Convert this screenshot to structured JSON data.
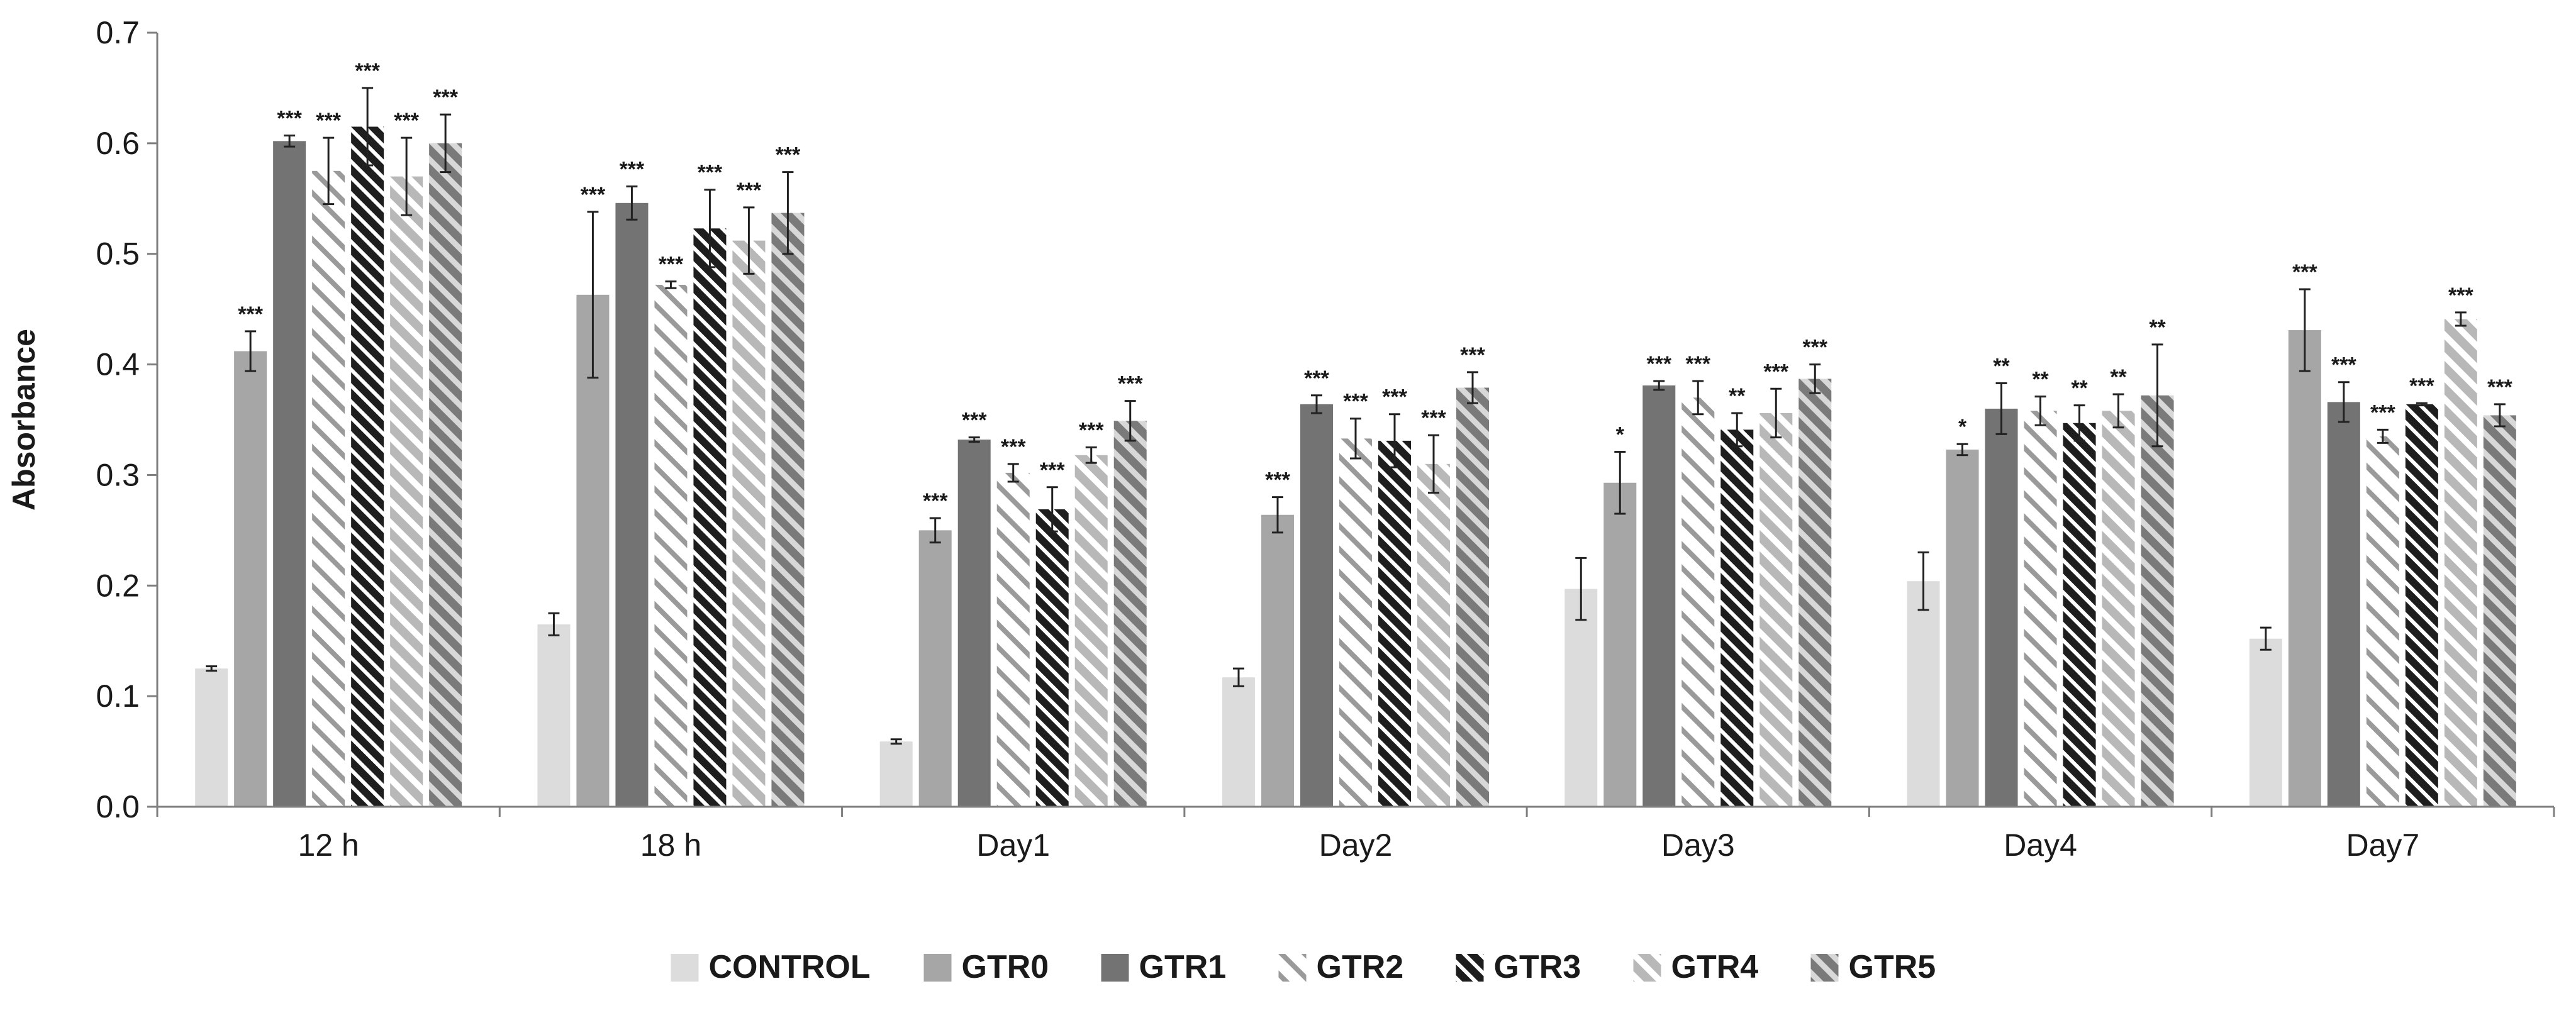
{
  "chart_data": {
    "type": "bar",
    "title": "",
    "xlabel": "",
    "ylabel": "Absorbance",
    "ylim": [
      0,
      0.7
    ],
    "yticks": [
      "0.0",
      "0.1",
      "0.2",
      "0.3",
      "0.4",
      "0.5",
      "0.6",
      "0.7"
    ],
    "grid": false,
    "legend_position": "bottom",
    "categories": [
      "12 h",
      "18 h",
      "Day1",
      "Day2",
      "Day3",
      "Day4",
      "Day7"
    ],
    "series": [
      {
        "name": "CONTROL",
        "pattern": "solid",
        "color": "#dcdcdc",
        "values": [
          0.125,
          0.165,
          0.059,
          0.117,
          0.197,
          0.204,
          0.152
        ],
        "errors": [
          0.002,
          0.01,
          0.002,
          0.008,
          0.028,
          0.026,
          0.01
        ],
        "significance": [
          "",
          "",
          "",
          "",
          "",
          "",
          ""
        ]
      },
      {
        "name": "GTR0",
        "pattern": "solid",
        "color": "#a6a6a6",
        "values": [
          0.412,
          0.463,
          0.25,
          0.264,
          0.293,
          0.323,
          0.431
        ],
        "errors": [
          0.018,
          0.075,
          0.011,
          0.016,
          0.028,
          0.005,
          0.037
        ],
        "significance": [
          "***",
          "***",
          "***",
          "***",
          "*",
          "*",
          "***"
        ]
      },
      {
        "name": "GTR1",
        "pattern": "solid",
        "color": "#737373",
        "values": [
          0.602,
          0.546,
          0.332,
          0.364,
          0.381,
          0.36,
          0.366
        ],
        "errors": [
          0.005,
          0.015,
          0.002,
          0.008,
          0.004,
          0.023,
          0.018
        ],
        "significance": [
          "***",
          "***",
          "***",
          "***",
          "***",
          "**",
          "***"
        ]
      },
      {
        "name": "GTR2",
        "pattern": "wide-diagonal",
        "color": "#ffffff",
        "values": [
          0.575,
          0.472,
          0.302,
          0.333,
          0.37,
          0.358,
          0.335
        ],
        "errors": [
          0.03,
          0.003,
          0.008,
          0.018,
          0.015,
          0.013,
          0.006
        ],
        "significance": [
          "***",
          "***",
          "***",
          "***",
          "***",
          "**",
          "***"
        ]
      },
      {
        "name": "GTR3",
        "pattern": "dark-diagonal",
        "color": "#202020",
        "values": [
          0.615,
          0.523,
          0.269,
          0.331,
          0.341,
          0.347,
          0.364
        ],
        "errors": [
          0.035,
          0.035,
          0.02,
          0.024,
          0.015,
          0.016,
          0.001
        ],
        "significance": [
          "***",
          "***",
          "***",
          "***",
          "**",
          "**",
          "***"
        ]
      },
      {
        "name": "GTR4",
        "pattern": "light-diagonal",
        "color": "#c0c0c0",
        "values": [
          0.57,
          0.512,
          0.318,
          0.31,
          0.356,
          0.358,
          0.441
        ],
        "errors": [
          0.035,
          0.03,
          0.007,
          0.026,
          0.022,
          0.015,
          0.006
        ],
        "significance": [
          "***",
          "***",
          "***",
          "***",
          "***",
          "**",
          "***"
        ]
      },
      {
        "name": "GTR5",
        "pattern": "gray-diagonal",
        "color": "#8c8c8c",
        "values": [
          0.6,
          0.537,
          0.349,
          0.379,
          0.387,
          0.372,
          0.354
        ],
        "errors": [
          0.026,
          0.037,
          0.018,
          0.014,
          0.013,
          0.046,
          0.01
        ],
        "significance": [
          "***",
          "***",
          "***",
          "***",
          "***",
          "**",
          "***"
        ]
      }
    ]
  }
}
